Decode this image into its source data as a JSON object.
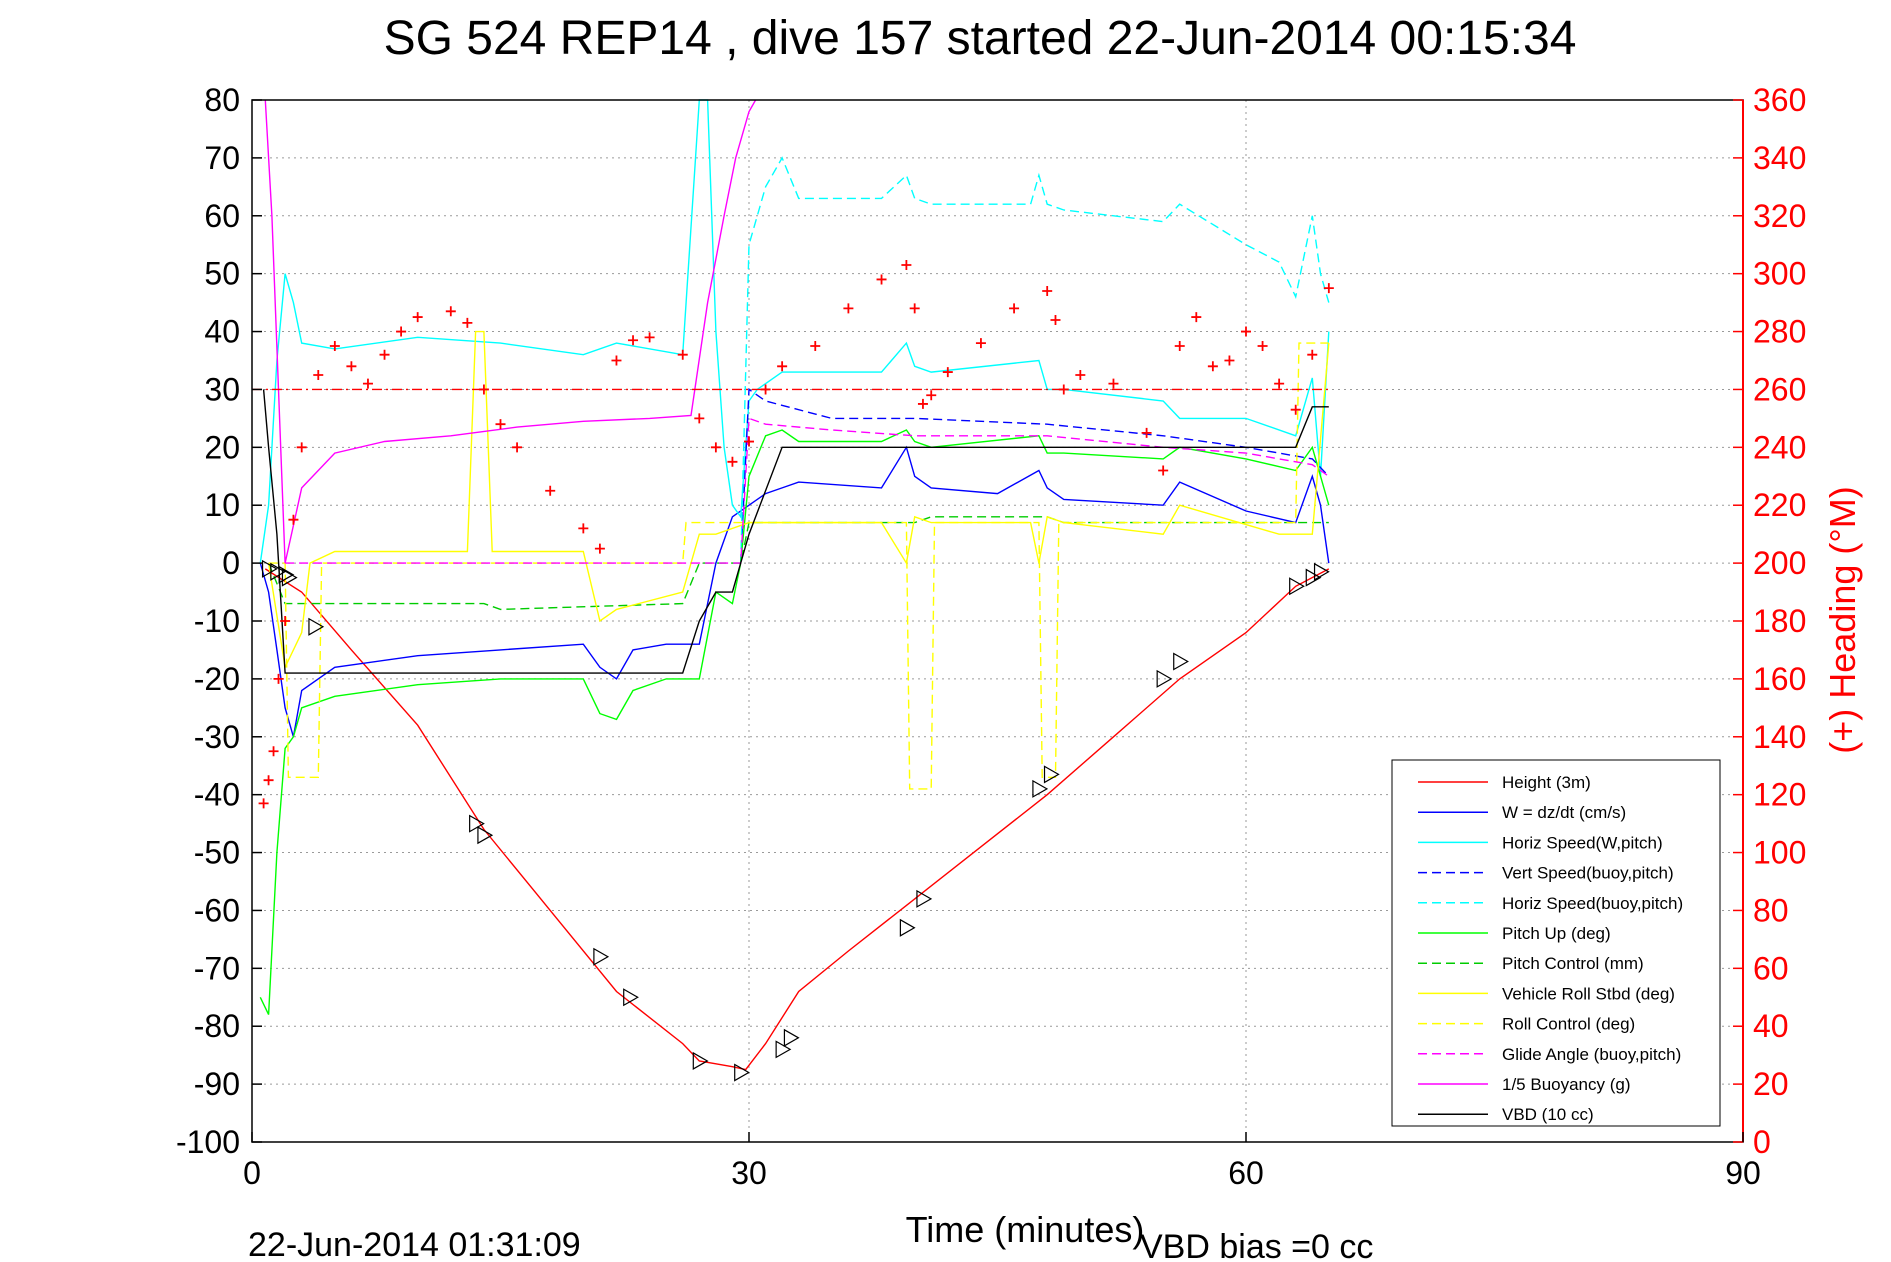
{
  "title": "SG 524   REP14  , dive 157 started 22-Jun-2014 00:15:34",
  "footer_left": "22-Jun-2014 01:31:09",
  "footer_right": "VBD bias =0 cc",
  "chart_data": {
    "type": "line",
    "title": "SG 524   REP14  , dive 157 started 22-Jun-2014 00:15:34",
    "xlabel": "Time (minutes)",
    "ylabel": "",
    "y2label": "(+) Heading (°M)",
    "xlim": [
      0,
      90
    ],
    "ylim": [
      -100,
      80
    ],
    "y2lim": [
      0,
      360
    ],
    "x_ticks": [
      "0",
      "30",
      "60",
      "90"
    ],
    "y_ticks": [
      "80",
      "70",
      "60",
      "50",
      "40",
      "30",
      "20",
      "10",
      "0",
      "-10",
      "-20",
      "-30",
      "-40",
      "-50",
      "-60",
      "-70",
      "-80",
      "-90",
      "-100"
    ],
    "y2_ticks": [
      "360",
      "340",
      "320",
      "300",
      "280",
      "260",
      "240",
      "220",
      "200",
      "180",
      "160",
      "140",
      "120",
      "100",
      "80",
      "60",
      "40",
      "20",
      "0"
    ],
    "grid": true,
    "legend_position": "bottom-right",
    "colors": {
      "height": "#ff0000",
      "w": "#0000ff",
      "horiz_speed_w": "#00ffff",
      "vert_speed_buoy": "#0000ff",
      "horiz_speed_buoy": "#00ffff",
      "pitch_up": "#00ff00",
      "pitch_control": "#00cc00",
      "roll": "#ffff00",
      "roll_control": "#ffff00",
      "glide_angle": "#ff00ff",
      "buoyancy": "#ff00ff",
      "vbd": "#000000",
      "heading": "#ff0000",
      "ref_line": "#ff0000"
    },
    "series": [
      {
        "name": "Height (3m)",
        "style": "solid",
        "color": "#ff0000",
        "x": [
          0.8,
          3,
          6,
          10,
          14,
          18,
          22,
          26,
          27,
          28,
          29,
          29.8,
          31,
          33,
          36,
          40,
          44,
          48,
          52,
          56,
          60,
          63,
          65
        ],
        "y": [
          -1,
          -5,
          -15,
          -28,
          -46,
          -60,
          -74,
          -83,
          -86,
          -86.5,
          -87,
          -87.5,
          -83,
          -74,
          -67,
          -58,
          -49,
          -40,
          -30,
          -20,
          -12,
          -4,
          -1
        ]
      },
      {
        "name": "W = dz/dt (cm/s)",
        "style": "solid",
        "color": "#0000ff",
        "x": [
          0.5,
          1,
          1.5,
          2,
          2.5,
          3,
          5,
          10,
          15,
          20,
          21,
          22,
          23,
          25,
          27,
          28,
          29,
          30,
          31,
          32,
          33,
          38,
          39.5,
          40,
          41,
          45,
          47.5,
          48,
          49,
          55,
          56,
          60,
          63,
          64,
          64.5,
          65
        ],
        "y": [
          0,
          -5,
          -15,
          -25,
          -30,
          -22,
          -18,
          -16,
          -15,
          -14,
          -18,
          -20,
          -15,
          -14,
          -14,
          0,
          8,
          10,
          12,
          13,
          14,
          13,
          20,
          15,
          13,
          12,
          16,
          13,
          11,
          10,
          14,
          9,
          7,
          15,
          10,
          0
        ]
      },
      {
        "name": "Horiz Speed(W,pitch)",
        "style": "solid",
        "color": "#00ffff",
        "x": [
          0.5,
          1,
          1.5,
          2,
          2.5,
          3,
          5,
          10,
          15,
          20,
          22,
          26,
          27,
          27.5,
          28,
          28.5,
          29,
          29.5,
          30,
          30.5,
          32,
          38,
          39.5,
          40,
          41,
          47.5,
          48,
          49,
          55,
          56,
          60,
          63,
          64,
          64.5,
          65
        ],
        "y": [
          0,
          10,
          35,
          50,
          45,
          38,
          37,
          39,
          38,
          36,
          38,
          36,
          80,
          80,
          40,
          20,
          10,
          8,
          28,
          30,
          33,
          33,
          38,
          34,
          33,
          35,
          30,
          30,
          28,
          25,
          25,
          22,
          32,
          15,
          40
        ]
      },
      {
        "name": "Vert Speed(buoy,pitch)",
        "style": "dashed",
        "color": "#0000ff",
        "x": [
          29.5,
          30,
          31,
          35,
          40,
          48,
          55,
          60,
          64,
          65
        ],
        "y": [
          0,
          30,
          28,
          25,
          25,
          24,
          22,
          20,
          18,
          15
        ]
      },
      {
        "name": "Horiz Speed(buoy,pitch)",
        "style": "dashed",
        "color": "#00ffff",
        "x": [
          29.5,
          30,
          31,
          32,
          33,
          38,
          39.5,
          40,
          41,
          47,
          47.5,
          48,
          49,
          55,
          56,
          60,
          62,
          63,
          64,
          64.5,
          65
        ],
        "y": [
          0,
          55,
          65,
          70,
          63,
          63,
          67,
          63,
          62,
          62,
          67,
          62,
          61,
          59,
          62,
          55,
          52,
          46,
          60,
          50,
          45
        ]
      },
      {
        "name": "Pitch Up (deg)",
        "style": "solid",
        "color": "#00ff00",
        "x": [
          0.5,
          1,
          1.5,
          2,
          2.5,
          3,
          5,
          10,
          15,
          20,
          21,
          22,
          23,
          25,
          27,
          28,
          29,
          29.5,
          30,
          31,
          32,
          33,
          38,
          39.5,
          40,
          41,
          47.5,
          48,
          49,
          55,
          56,
          60,
          63,
          64,
          65
        ],
        "y": [
          -75,
          -78,
          -50,
          -32,
          -30,
          -25,
          -23,
          -21,
          -20,
          -20,
          -26,
          -27,
          -22,
          -20,
          -20,
          -5,
          -7,
          0,
          15,
          22,
          23,
          21,
          21,
          23,
          21,
          20,
          22,
          19,
          19,
          18,
          20,
          18,
          16,
          20,
          10
        ]
      },
      {
        "name": "Pitch Control (mm)",
        "style": "dashed",
        "color": "#00cc00",
        "x": [
          1,
          2,
          3,
          5,
          14,
          15,
          26,
          27,
          29.5,
          30,
          40,
          41,
          48,
          49,
          56,
          57,
          64,
          65
        ],
        "y": [
          0,
          -7,
          -7,
          -7,
          -7,
          -8,
          -7,
          0,
          0,
          7,
          7,
          8,
          8,
          7,
          7,
          7,
          7,
          7
        ]
      },
      {
        "name": "Vehicle Roll Stbd (deg)",
        "style": "solid",
        "color": "#ffff00",
        "x": [
          1,
          2,
          3,
          3.5,
          5,
          13,
          13.5,
          14,
          14.5,
          20,
          21,
          22,
          26,
          27,
          28,
          30,
          32,
          38,
          39.5,
          40,
          41,
          47,
          47.5,
          48,
          49,
          55,
          56,
          62,
          64,
          65
        ],
        "y": [
          0,
          -18,
          -12,
          0,
          2,
          2,
          40,
          40,
          2,
          2,
          -10,
          -8,
          -5,
          5,
          5,
          7,
          7,
          7,
          0,
          8,
          7,
          7,
          0,
          8,
          7,
          5,
          10,
          5,
          5,
          38
        ]
      },
      {
        "name": "Roll Control (deg)",
        "style": "dashed",
        "color": "#ffff00",
        "x": [
          1,
          2,
          2.2,
          4,
          4.2,
          26,
          26.2,
          30.5,
          31,
          39.5,
          39.7,
          41,
          41.2,
          47.5,
          47.7,
          48.5,
          48.7,
          63,
          63.2,
          65
        ],
        "y": [
          0,
          0,
          -37,
          -37,
          0,
          0,
          7,
          7,
          7,
          7,
          -39,
          -39,
          7,
          7,
          -37,
          -37,
          7,
          7,
          38,
          38
        ]
      },
      {
        "name": "Glide Angle (buoy,pitch)",
        "style": "dashed",
        "color": "#ff00ff",
        "x": [
          2,
          29.5,
          30,
          31,
          35,
          40,
          48,
          55,
          60,
          64,
          65
        ],
        "y": [
          0,
          0,
          25,
          24,
          23,
          22,
          22,
          20,
          19,
          17,
          15
        ]
      },
      {
        "name": "1/5 Buoyancy (g)",
        "style": "solid",
        "color": "#ff00ff",
        "x": [
          0.8,
          1.2,
          1.8,
          2,
          3,
          5,
          8,
          12,
          16,
          20,
          24,
          26.5,
          27.5,
          28.5,
          29.2,
          30,
          30.4
        ],
        "y": [
          80,
          60,
          15,
          0,
          13,
          19,
          21,
          22,
          23.5,
          24.5,
          25,
          25.5,
          45,
          60,
          70,
          78,
          80
        ]
      },
      {
        "name": "VBD (10 cc)",
        "style": "solid",
        "color": "#000000",
        "x": [
          0.7,
          1,
          1.5,
          2,
          4,
          10,
          20,
          26,
          27,
          28,
          29,
          29.5,
          30,
          32,
          35,
          40,
          50,
          60,
          63,
          64,
          65
        ],
        "y": [
          30,
          20,
          5,
          -19,
          -19,
          -19,
          -19,
          -19,
          -10,
          -5,
          -5,
          0,
          5,
          20,
          20,
          20,
          20,
          20,
          20,
          27,
          27
        ]
      },
      {
        "name": "Heading",
        "style": "markers",
        "color": "#ff0000",
        "axis": "right",
        "x": [
          0.7,
          1,
          1.3,
          1.6,
          2,
          2.5,
          3,
          4,
          5,
          6,
          7,
          8,
          9,
          10,
          12,
          13,
          14,
          15,
          16,
          18,
          20,
          21,
          22,
          23,
          24,
          26,
          27,
          28,
          29,
          30,
          31,
          32,
          34,
          36,
          38,
          39.5,
          40,
          40.5,
          41,
          42,
          44,
          46,
          48,
          48.5,
          49,
          50,
          52,
          54,
          55,
          56,
          57,
          58,
          59,
          60,
          61,
          62,
          63,
          64,
          65
        ],
        "y": [
          117,
          125,
          135,
          160,
          180,
          215,
          240,
          265,
          275,
          268,
          262,
          272,
          280,
          285,
          287,
          283,
          260,
          248,
          240,
          225,
          212,
          205,
          270,
          277,
          278,
          272,
          250,
          240,
          235,
          242,
          260,
          268,
          275,
          288,
          298,
          303,
          288,
          255,
          258,
          266,
          276,
          288,
          294,
          284,
          260,
          265,
          262,
          245,
          232,
          275,
          285,
          268,
          270,
          280,
          275,
          262,
          253,
          272,
          295
        ]
      },
      {
        "name": "Heading reference",
        "style": "dashdot",
        "color": "#ff0000",
        "axis": "right",
        "x": [
          0,
          65
        ],
        "y": [
          260,
          260
        ]
      }
    ],
    "triangle_markers": {
      "color": "#000000",
      "x": [
        1,
        1.5,
        2,
        2.2,
        3.8,
        13.5,
        14,
        21,
        22.8,
        27,
        29.5,
        32,
        32.5,
        39.5,
        40.5,
        47.5,
        48.2,
        55,
        56,
        63,
        64,
        64.5
      ],
      "y": [
        -1,
        -1.5,
        -2,
        -2.5,
        -11,
        -45,
        -47,
        -68,
        -75,
        -86,
        -88,
        -84,
        -82,
        -63,
        -58,
        -39,
        -36.5,
        -20,
        -17,
        -4,
        -2.5,
        -1.5
      ]
    }
  }
}
